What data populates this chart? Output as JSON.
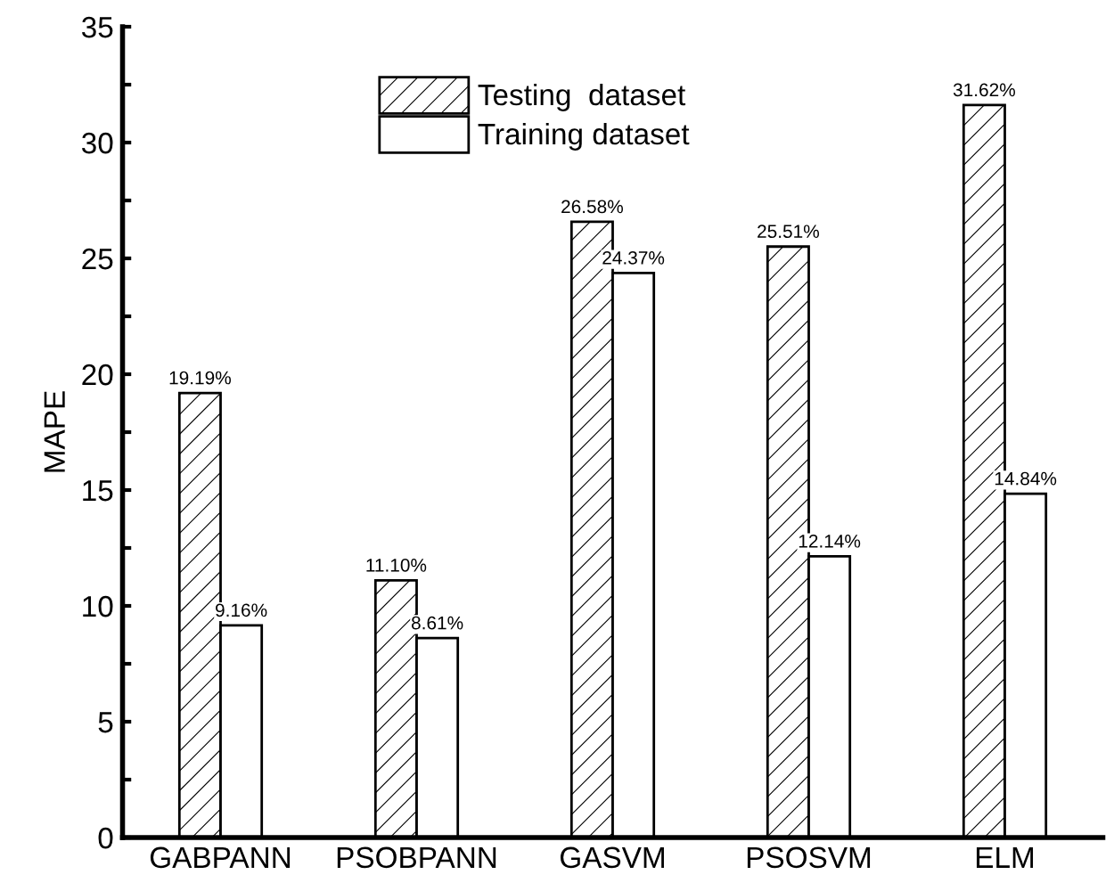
{
  "chart_data": {
    "type": "bar",
    "ylabel": "MAPE",
    "categories": [
      "GABPANN",
      "PSOBPANN",
      "GASVM",
      "PSOSVM",
      "ELM"
    ],
    "series": [
      {
        "name": "Testing  dataset",
        "color": "#000000",
        "values": [
          19.19,
          11.1,
          26.58,
          25.51,
          31.62
        ],
        "value_labels": [
          "19.19%",
          "11.10%",
          "26.58%",
          "25.51%",
          "31.62%"
        ]
      },
      {
        "name": "Training dataset",
        "color": "#ffffff",
        "values": [
          9.16,
          8.61,
          24.37,
          12.14,
          14.84
        ],
        "value_labels": [
          "9.16%",
          "8.61%",
          "24.37%",
          "12.14%",
          "14.84%"
        ]
      }
    ],
    "ylim": [
      0,
      35
    ],
    "yticks": [
      0,
      {
        "value": 2.5,
        "label": null
      },
      5,
      {
        "value": 7.5,
        "label": null
      },
      10,
      {
        "value": 12.5,
        "label": null
      },
      15,
      {
        "value": 17.5,
        "label": null
      },
      20,
      {
        "value": 22.5,
        "label": null
      },
      25,
      {
        "value": 27.5,
        "label": null
      },
      30,
      {
        "value": 32.5,
        "label": null
      },
      35
    ],
    "grid": false,
    "legend": "top"
  }
}
